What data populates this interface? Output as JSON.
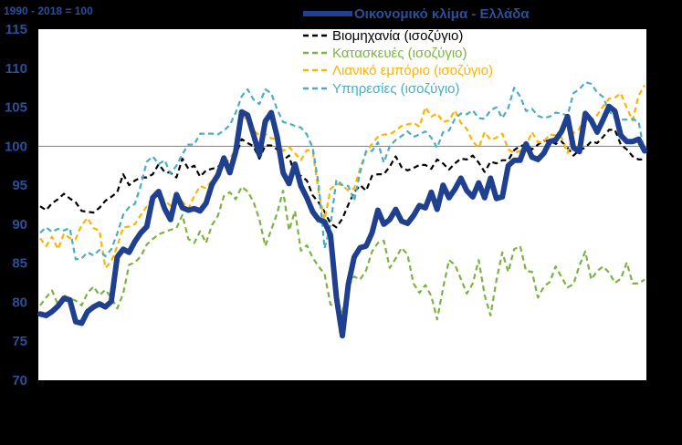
{
  "chart_data": {
    "type": "line",
    "note": "1990 - 2018 = 100",
    "ylim": [
      70,
      115
    ],
    "yticks": [
      "70",
      "75",
      "80",
      "85",
      "90",
      "95",
      "100",
      "105",
      "110",
      "115"
    ],
    "xlabel": "",
    "ylabel": "",
    "grid": false,
    "reference_line": 100,
    "legend_placement": "top-right",
    "colors": {
      "background": "#000000",
      "plot": "#ffffff",
      "axis_text": "#2b4f9a",
      "reference": "#7f7f7f"
    },
    "series": [
      {
        "name": "Οικονομικό κλίμα - Ελλάδα",
        "color": "#1f3f8f",
        "style": "solid",
        "values": [
          78.5,
          78.3,
          78.8,
          79.5,
          80.5,
          80.3,
          77.5,
          77.3,
          78.8,
          79.4,
          79.8,
          79.4,
          80.1,
          85.8,
          86.8,
          86.4,
          87.8,
          88.9,
          89.7,
          93.4,
          94.2,
          92.0,
          90.6,
          93.8,
          92.1,
          91.8,
          92.0,
          91.7,
          92.7,
          95.1,
          96.3,
          98.5,
          96.6,
          99.3,
          104.4,
          104.0,
          101.5,
          98.9,
          103.2,
          104.3,
          101.2,
          96.6,
          95.2,
          97.7,
          94.9,
          93.4,
          91.6,
          90.6,
          90.3,
          88.6,
          80.6,
          75.7,
          82.3,
          85.8,
          87.0,
          87.2,
          88.9,
          91.8,
          90.0,
          90.6,
          91.9,
          90.4,
          90.1,
          91.1,
          92.4,
          92.1,
          94.1,
          91.9,
          95.0,
          93.4,
          94.5,
          95.9,
          94.3,
          93.5,
          95.3,
          93.4,
          95.9,
          93.3,
          93.5,
          97.5,
          98.2,
          98.2,
          100.3,
          98.6,
          98.3,
          99.1,
          100.6,
          100.8,
          101.9,
          103.8,
          99.8,
          99.3,
          104.2,
          103.3,
          101.8,
          103.4,
          105.1,
          104.5,
          101.4,
          100.6,
          100.6,
          100.9,
          99.4
        ]
      },
      {
        "name": "Βιομηχανία (ισοζύγιο)",
        "color": "#000000",
        "style": "dashed",
        "values": [
          92.3,
          91.8,
          92.7,
          93.2,
          93.9,
          93.3,
          92.8,
          91.7,
          91.6,
          91.5,
          92.1,
          93.0,
          93.5,
          94.1,
          96.4,
          95.0,
          95.6,
          96.0,
          96.0,
          96.4,
          97.7,
          96.7,
          96.6,
          96.0,
          98.4,
          97.1,
          97.5,
          96.1,
          96.9,
          97.1,
          97.3,
          98.2,
          97.4,
          98.8,
          100.9,
          100.4,
          100.0,
          98.4,
          100.1,
          100.1,
          99.6,
          98.2,
          98.8,
          96.1,
          96.2,
          95.6,
          93.7,
          92.8,
          91.6,
          90.1,
          89.6,
          90.7,
          92.5,
          94.1,
          95.0,
          94.3,
          96.2,
          96.4,
          96.4,
          97.4,
          98.7,
          97.3,
          96.9,
          97.2,
          97.6,
          97.6,
          97.1,
          98.3,
          97.8,
          97.0,
          97.8,
          98.4,
          98.3,
          98.8,
          97.9,
          96.7,
          98.0,
          97.8,
          98.2,
          98.2,
          99.5,
          100.0,
          100.2,
          99.6,
          100.2,
          100.7,
          100.7,
          100.3,
          100.6,
          99.8,
          98.8,
          99.5,
          99.8,
          100.6,
          100.4,
          101.2,
          102.1,
          102.1,
          100.2,
          99.6,
          98.7,
          98.3,
          98.3
        ]
      },
      {
        "name": "Κατασκευές (ισοζύγιο)",
        "color": "#7cb342",
        "style": "dashed",
        "values": [
          79.6,
          80.6,
          81.5,
          79.7,
          80.9,
          80.5,
          80.2,
          79.6,
          81.2,
          82.0,
          80.9,
          81.6,
          80.6,
          79.2,
          81.1,
          84.8,
          85.1,
          85.9,
          87.4,
          88.1,
          88.7,
          89.0,
          89.3,
          89.5,
          91.2,
          88.1,
          87.6,
          89.1,
          87.6,
          89.9,
          91.1,
          93.6,
          94.1,
          93.2,
          94.8,
          94.2,
          92.9,
          90.6,
          87.2,
          89.3,
          91.4,
          94.3,
          89.2,
          91.7,
          86.6,
          87.3,
          85.7,
          84.6,
          83.6,
          79.7,
          79.5,
          78.7,
          82.1,
          83.3,
          82.9,
          84.1,
          86.5,
          87.6,
          87.9,
          84.4,
          85.6,
          87.0,
          86.1,
          82.4,
          81.2,
          82.2,
          80.8,
          77.8,
          81.8,
          85.4,
          84.8,
          83.0,
          81.1,
          82.4,
          85.4,
          80.9,
          78.3,
          82.8,
          86.4,
          83.9,
          86.8,
          87.2,
          84.0,
          83.9,
          80.6,
          82.0,
          82.6,
          84.6,
          83.2,
          81.9,
          82.3,
          84.7,
          86.5,
          82.9,
          84.0,
          84.6,
          83.8,
          82.5,
          83.0,
          85.1,
          82.4,
          82.4,
          82.9
        ]
      },
      {
        "name": "Λιανικό εμπόριο (ισοζύγιο)",
        "color": "#ffb300",
        "style": "dashed",
        "values": [
          88.2,
          87.2,
          88.4,
          86.8,
          88.8,
          88.2,
          88.1,
          89.9,
          90.8,
          89.5,
          89.2,
          84.4,
          85.2,
          87.2,
          89.6,
          89.7,
          90.0,
          91.2,
          92.3,
          93.5,
          94.0,
          93.0,
          92.4,
          94.0,
          92.9,
          92.0,
          93.6,
          94.9,
          94.6,
          95.6,
          96.6,
          97.4,
          98.4,
          99.6,
          103.9,
          103.4,
          102.0,
          101.4,
          101.6,
          101.0,
          100.9,
          99.4,
          99.9,
          99.1,
          98.2,
          99.5,
          99.3,
          94.2,
          90.5,
          94.5,
          95.2,
          95.0,
          94.3,
          94.6,
          97.2,
          99.2,
          100.3,
          101.2,
          101.5,
          101.5,
          102.0,
          102.6,
          102.8,
          103.0,
          102.5,
          105.0,
          103.8,
          104.2,
          103.1,
          103.3,
          104.6,
          103.0,
          102.2,
          100.6,
          99.8,
          101.8,
          100.8,
          101.1,
          101.6,
          99.6,
          99.1,
          99.4,
          100.1,
          101.8,
          100.5,
          100.6,
          101.5,
          101.4,
          101.1,
          99.1,
          101.7,
          102.2,
          104.2,
          103.1,
          104.0,
          105.1,
          106.1,
          106.2,
          106.8,
          104.9,
          103.3,
          106.5,
          107.8
        ]
      },
      {
        "name": "Υπηρεσίες (ισοζύγιο)",
        "color": "#4bacc6",
        "style": "dashed",
        "values": [
          88.9,
          89.6,
          89.0,
          89.4,
          89.2,
          89.5,
          85.5,
          85.6,
          86.4,
          86.0,
          86.7,
          85.9,
          86.8,
          88.8,
          91.2,
          92.2,
          92.6,
          95.0,
          98.0,
          98.7,
          97.7,
          98.2,
          96.5,
          97.5,
          99.0,
          100.2,
          100.2,
          101.6,
          101.6,
          101.6,
          101.5,
          102.0,
          102.7,
          104.3,
          106.4,
          107.3,
          106.0,
          105.4,
          107.3,
          106.8,
          104.7,
          103.1,
          102.9,
          102.6,
          102.4,
          101.5,
          99.8,
          95.1,
          86.9,
          89.9,
          95.7,
          95.0,
          94.9,
          93.0,
          96.7,
          99.4,
          99.4,
          100.5,
          97.9,
          100.0,
          100.8,
          101.3,
          101.9,
          101.2,
          101.5,
          101.9,
          101.1,
          99.8,
          101.8,
          102.0,
          103.5,
          104.2,
          104.1,
          104.6,
          103.6,
          103.5,
          104.6,
          105.0,
          103.6,
          104.9,
          107.5,
          106.4,
          104.5,
          104.8,
          103.9,
          103.6,
          103.8,
          104.3,
          104.2,
          103.9,
          106.8,
          107.3,
          108.2,
          108.0,
          106.9,
          106.3,
          104.5,
          103.6,
          103.4,
          103.4,
          103.5,
          103.1,
          99.1
        ]
      }
    ]
  }
}
